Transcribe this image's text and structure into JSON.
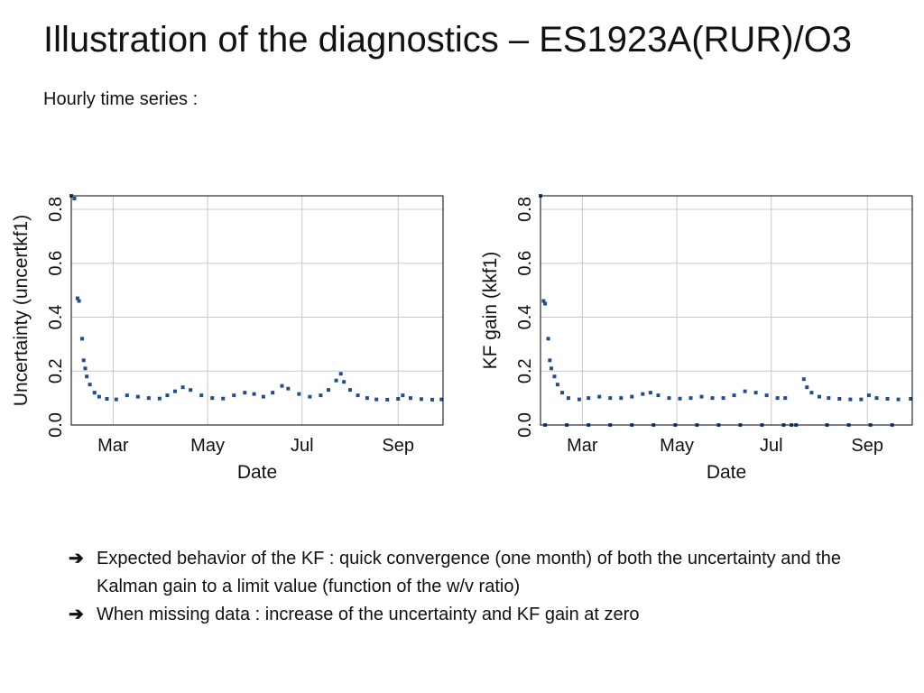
{
  "slide": {
    "title": "Illustration of the diagnostics – ES1923A(RUR)/O3",
    "subtitle": "Hourly time series :"
  },
  "bullets": [
    {
      "icon": "arrow-right-icon",
      "arrow": "➔",
      "text": "Expected behavior of the KF : quick convergence (one month) of both the uncertainty and the Kalman gain to a limit value (function of the w/v ratio)"
    },
    {
      "icon": "arrow-right-icon",
      "arrow": "➔",
      "text": "When missing data : increase of the uncertainty and KF gain at zero"
    }
  ],
  "colors": {
    "points": "#1f4e8c",
    "grid": "#c8c8c8",
    "frame": "#000000"
  },
  "chart_data": [
    {
      "type": "scatter",
      "title": "",
      "xlabel": "Date",
      "ylabel": "Uncertainty (uncertkf1)",
      "xlim": [
        "2015-02-02",
        "2015-09-30"
      ],
      "ylim": [
        0,
        0.85
      ],
      "xticks": [
        {
          "label": "Mar",
          "date": "2015-03-01"
        },
        {
          "label": "May",
          "date": "2015-05-01"
        },
        {
          "label": "Jul",
          "date": "2015-07-01"
        },
        {
          "label": "Sep",
          "date": "2015-09-01"
        }
      ],
      "yticks": [
        {
          "label": "0.0",
          "value": 0
        },
        {
          "label": "0.2",
          "value": 0.2
        },
        {
          "label": "0.4",
          "value": 0.4
        },
        {
          "label": "0.6",
          "value": 0.6
        },
        {
          "label": "0.8",
          "value": 0.8
        }
      ],
      "grid": true,
      "series": [
        {
          "points": [
            [
              "2015-02-02",
              0.85
            ],
            [
              "2015-02-04",
              0.84
            ],
            [
              "2015-02-06",
              0.47
            ],
            [
              "2015-02-07",
              0.46
            ],
            [
              "2015-02-09",
              0.32
            ],
            [
              "2015-02-10",
              0.24
            ],
            [
              "2015-02-11",
              0.21
            ],
            [
              "2015-02-12",
              0.18
            ],
            [
              "2015-02-14",
              0.15
            ],
            [
              "2015-02-17",
              0.12
            ],
            [
              "2015-02-20",
              0.105
            ],
            [
              "2015-02-25",
              0.097
            ],
            [
              "2015-03-03",
              0.095
            ],
            [
              "2015-03-10",
              0.11
            ],
            [
              "2015-03-17",
              0.105
            ],
            [
              "2015-03-24",
              0.1
            ],
            [
              "2015-03-31",
              0.098
            ],
            [
              "2015-04-05",
              0.11
            ],
            [
              "2015-04-10",
              0.125
            ],
            [
              "2015-04-15",
              0.14
            ],
            [
              "2015-04-20",
              0.13
            ],
            [
              "2015-04-27",
              0.11
            ],
            [
              "2015-05-04",
              0.1
            ],
            [
              "2015-05-11",
              0.098
            ],
            [
              "2015-05-18",
              0.11
            ],
            [
              "2015-05-25",
              0.12
            ],
            [
              "2015-05-31",
              0.115
            ],
            [
              "2015-06-06",
              0.105
            ],
            [
              "2015-06-12",
              0.12
            ],
            [
              "2015-06-18",
              0.145
            ],
            [
              "2015-06-22",
              0.135
            ],
            [
              "2015-06-29",
              0.115
            ],
            [
              "2015-07-06",
              0.105
            ],
            [
              "2015-07-13",
              0.11
            ],
            [
              "2015-07-18",
              0.13
            ],
            [
              "2015-07-23",
              0.165
            ],
            [
              "2015-07-26",
              0.19
            ],
            [
              "2015-07-28",
              0.16
            ],
            [
              "2015-08-01",
              0.13
            ],
            [
              "2015-08-06",
              0.11
            ],
            [
              "2015-08-12",
              0.1
            ],
            [
              "2015-08-18",
              0.095
            ],
            [
              "2015-08-25",
              0.094
            ],
            [
              "2015-09-01",
              0.097
            ],
            [
              "2015-09-04",
              0.11
            ],
            [
              "2015-09-09",
              0.1
            ],
            [
              "2015-09-16",
              0.096
            ],
            [
              "2015-09-23",
              0.094
            ],
            [
              "2015-09-29",
              0.095
            ]
          ]
        }
      ]
    },
    {
      "type": "scatter",
      "title": "",
      "xlabel": "Date",
      "ylabel": "KF gain (kkf1)",
      "xlim": [
        "2015-02-02",
        "2015-09-30"
      ],
      "ylim": [
        0,
        0.85
      ],
      "xticks": [
        {
          "label": "Mar",
          "date": "2015-03-01"
        },
        {
          "label": "May",
          "date": "2015-05-01"
        },
        {
          "label": "Jul",
          "date": "2015-07-01"
        },
        {
          "label": "Sep",
          "date": "2015-09-01"
        }
      ],
      "yticks": [
        {
          "label": "0.0",
          "value": 0
        },
        {
          "label": "0.2",
          "value": 0.2
        },
        {
          "label": "0.4",
          "value": 0.4
        },
        {
          "label": "0.6",
          "value": 0.6
        },
        {
          "label": "0.8",
          "value": 0.8
        }
      ],
      "grid": true,
      "series": [
        {
          "points": [
            [
              "2015-02-02",
              0.85
            ],
            [
              "2015-02-04",
              0.46
            ],
            [
              "2015-02-05",
              0.45
            ],
            [
              "2015-02-07",
              0.32
            ],
            [
              "2015-02-08",
              0.24
            ],
            [
              "2015-02-09",
              0.21
            ],
            [
              "2015-02-11",
              0.18
            ],
            [
              "2015-02-13",
              0.15
            ],
            [
              "2015-02-16",
              0.12
            ],
            [
              "2015-02-20",
              0.1
            ],
            [
              "2015-02-27",
              0.095
            ],
            [
              "2015-03-05",
              0.1
            ],
            [
              "2015-03-12",
              0.105
            ],
            [
              "2015-03-19",
              0.1
            ],
            [
              "2015-03-26",
              0.1
            ],
            [
              "2015-04-02",
              0.105
            ],
            [
              "2015-04-09",
              0.115
            ],
            [
              "2015-04-14",
              0.12
            ],
            [
              "2015-04-19",
              0.11
            ],
            [
              "2015-04-26",
              0.1
            ],
            [
              "2015-05-03",
              0.098
            ],
            [
              "2015-05-10",
              0.1
            ],
            [
              "2015-05-17",
              0.105
            ],
            [
              "2015-05-24",
              0.1
            ],
            [
              "2015-05-31",
              0.1
            ],
            [
              "2015-06-07",
              0.11
            ],
            [
              "2015-06-14",
              0.125
            ],
            [
              "2015-06-21",
              0.12
            ],
            [
              "2015-06-28",
              0.11
            ],
            [
              "2015-07-05",
              0.1
            ],
            [
              "2015-07-10",
              0.1
            ],
            [
              "2015-07-22",
              0.17
            ],
            [
              "2015-07-24",
              0.14
            ],
            [
              "2015-07-27",
              0.12
            ],
            [
              "2015-08-01",
              0.105
            ],
            [
              "2015-08-07",
              0.1
            ],
            [
              "2015-08-14",
              0.097
            ],
            [
              "2015-08-21",
              0.095
            ],
            [
              "2015-08-28",
              0.095
            ],
            [
              "2015-09-02",
              0.11
            ],
            [
              "2015-09-07",
              0.1
            ],
            [
              "2015-09-14",
              0.097
            ],
            [
              "2015-09-21",
              0.095
            ],
            [
              "2015-09-29",
              0.097
            ],
            [
              "2015-02-05",
              0
            ],
            [
              "2015-02-19",
              0
            ],
            [
              "2015-03-05",
              0
            ],
            [
              "2015-03-19",
              0
            ],
            [
              "2015-04-02",
              0
            ],
            [
              "2015-04-16",
              0
            ],
            [
              "2015-04-30",
              0
            ],
            [
              "2015-05-14",
              0
            ],
            [
              "2015-05-28",
              0
            ],
            [
              "2015-06-11",
              0
            ],
            [
              "2015-06-25",
              0
            ],
            [
              "2015-07-09",
              0
            ],
            [
              "2015-07-14",
              0
            ],
            [
              "2015-07-17",
              0
            ],
            [
              "2015-08-06",
              0
            ],
            [
              "2015-08-20",
              0
            ],
            [
              "2015-09-03",
              0
            ],
            [
              "2015-09-17",
              0
            ]
          ]
        }
      ]
    }
  ]
}
